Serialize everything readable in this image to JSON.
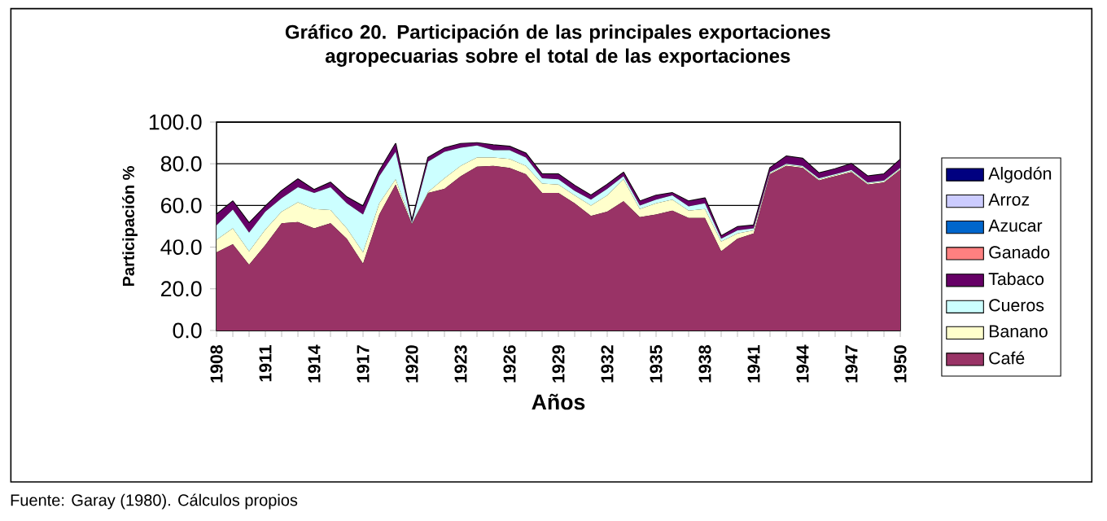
{
  "chart_data": {
    "type": "area",
    "stacked": true,
    "title": "Gráfico 20. Participación de las principales exportaciones agropecuarias sobre el total de las exportaciones",
    "xlabel": "Años",
    "ylabel": "Participación %",
    "annotations": [
      "Fuente: Garay (1980). Cálculos propios"
    ],
    "x": [
      1908,
      1909,
      1910,
      1911,
      1912,
      1913,
      1914,
      1915,
      1916,
      1917,
      1918,
      1919,
      1920,
      1921,
      1922,
      1923,
      1924,
      1925,
      1926,
      1927,
      1928,
      1929,
      1930,
      1931,
      1932,
      1933,
      1934,
      1935,
      1936,
      1937,
      1938,
      1939,
      1940,
      1941,
      1942,
      1943,
      1944,
      1945,
      1946,
      1947,
      1948,
      1949,
      1950
    ],
    "xlim": [
      1908,
      1950
    ],
    "xticks": [
      1908,
      1911,
      1914,
      1917,
      1920,
      1923,
      1926,
      1929,
      1932,
      1935,
      1938,
      1941,
      1944,
      1947,
      1950
    ],
    "ylim": [
      0,
      100
    ],
    "yticks": [
      {
        "value": 0,
        "label": "0.0"
      },
      {
        "value": 20,
        "label": "20.0"
      },
      {
        "value": 40,
        "label": "40.0"
      },
      {
        "value": 60,
        "label": "60.0"
      },
      {
        "value": 80,
        "label": "80.0"
      },
      {
        "value": 100,
        "label": "100.0"
      }
    ],
    "grid": "y",
    "legend": "right",
    "series": [
      {
        "name": "Café",
        "color": "#993366",
        "values": [
          37.5,
          41.4,
          31.5,
          41,
          51.5,
          52,
          49,
          51.5,
          44,
          32,
          55.7,
          70,
          51,
          66,
          68,
          74,
          78.6,
          79,
          78,
          75,
          66,
          66,
          61,
          55,
          57,
          62,
          54.4,
          55.7,
          57.5,
          54,
          54,
          38,
          44,
          46.6,
          75,
          79,
          78,
          72,
          74,
          76,
          70,
          71,
          77
        ]
      },
      {
        "name": "Banano",
        "color": "#ffffcc",
        "values": [
          6.0,
          7.6,
          6.5,
          7.4,
          5.5,
          9.5,
          9.3,
          6.3,
          5.0,
          5.5,
          5.3,
          2.6,
          0.3,
          0.5,
          5.0,
          5.0,
          4.4,
          4.0,
          4.3,
          4.0,
          4.5,
          4.0,
          3.8,
          5.0,
          7.8,
          10.6,
          3.9,
          5.3,
          5.3,
          3.5,
          4.3,
          4.7,
          2.6,
          1.4,
          0.5,
          0.5,
          0.5,
          0.5,
          0.5,
          0.5,
          0.5,
          0.5,
          0.5
        ]
      },
      {
        "name": "Cueros",
        "color": "#ccffff",
        "values": [
          7.0,
          9.0,
          9.0,
          8.6,
          6.5,
          7.2,
          7.7,
          10.9,
          12.0,
          18.2,
          13.0,
          13.1,
          0.3,
          14.5,
          12.7,
          8.7,
          5.8,
          3.5,
          4.2,
          4.0,
          2.5,
          2.6,
          2.2,
          2.8,
          3.2,
          1.4,
          1.7,
          1.8,
          2.0,
          2.1,
          2.7,
          1.3,
          1.4,
          1.0,
          0.5,
          0.5,
          0.5,
          0.5,
          0.5,
          0.5,
          0.5,
          0.5,
          0.5
        ]
      },
      {
        "name": "Tabaco",
        "color": "#660066",
        "values": [
          5.2,
          4.0,
          4.5,
          2.6,
          3.5,
          3.9,
          1.5,
          2.3,
          3.0,
          3.9,
          2.5,
          3.9,
          0.8,
          2.0,
          1.8,
          1.9,
          1.2,
          2.5,
          1.8,
          2.0,
          2.0,
          2.4,
          2.5,
          2.0,
          2.0,
          1.8,
          2.0,
          2.0,
          1.2,
          2.4,
          2.5,
          1.3,
          1.7,
          1.5,
          2.0,
          3.6,
          3.5,
          2.5,
          2.5,
          3.0,
          3.0,
          3.0,
          4.0
        ]
      },
      {
        "name": "Ganado",
        "color": "#ff8080",
        "values": [
          null,
          null,
          null,
          null,
          null,
          null,
          null,
          null,
          null,
          null,
          null,
          null,
          null,
          null,
          null,
          null,
          null,
          null,
          null,
          null,
          null,
          null,
          null,
          null,
          null,
          null,
          null,
          null,
          null,
          null,
          null,
          null,
          null,
          null,
          null,
          null,
          null,
          null,
          null,
          null,
          null,
          null,
          null
        ]
      },
      {
        "name": "Azucar",
        "color": "#0066cc",
        "values": [
          null,
          null,
          null,
          null,
          null,
          null,
          null,
          null,
          null,
          null,
          null,
          null,
          null,
          null,
          null,
          null,
          null,
          null,
          null,
          null,
          null,
          null,
          null,
          null,
          null,
          null,
          null,
          null,
          null,
          null,
          null,
          null,
          null,
          null,
          null,
          null,
          null,
          null,
          null,
          null,
          null,
          null,
          null
        ]
      },
      {
        "name": "Arroz",
        "color": "#ccccff",
        "values": [
          null,
          null,
          null,
          null,
          null,
          null,
          null,
          null,
          null,
          null,
          null,
          null,
          null,
          null,
          null,
          null,
          null,
          null,
          null,
          null,
          null,
          null,
          null,
          null,
          null,
          null,
          null,
          null,
          null,
          null,
          null,
          null,
          null,
          null,
          null,
          null,
          null,
          null,
          null,
          null,
          null,
          null,
          null
        ]
      },
      {
        "name": "Algodón",
        "color": "#000080",
        "values": [
          null,
          null,
          null,
          null,
          null,
          null,
          null,
          null,
          null,
          null,
          null,
          null,
          null,
          null,
          null,
          null,
          null,
          null,
          null,
          null,
          null,
          null,
          null,
          null,
          null,
          null,
          null,
          null,
          null,
          null,
          null,
          null,
          null,
          null,
          null,
          null,
          null,
          null,
          null,
          null,
          null,
          null,
          null
        ]
      }
    ]
  }
}
